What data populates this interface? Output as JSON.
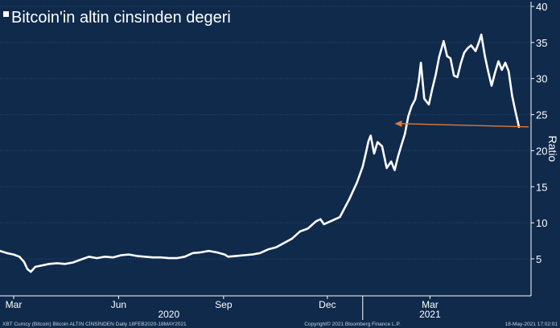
{
  "colors": {
    "background": "#102a4c",
    "line": "#ffffff",
    "grid": "#2d4a6e",
    "arrow": "#e07a3a",
    "text": "#ffffff",
    "footer_text": "#c9d3df"
  },
  "chart_data": {
    "type": "line",
    "title": "Bitcoin'in altin cinsinden degeri",
    "xlabel": "",
    "ylabel": "Ratio",
    "ylim": [
      0,
      40
    ],
    "yticks": [
      5,
      10,
      15,
      20,
      25,
      30,
      35,
      40
    ],
    "grid": "horizontal",
    "x_range": [
      "2020-02-18",
      "2021-05-18"
    ],
    "month_ticks": [
      {
        "label": "Mar",
        "date": "2020-03-01"
      },
      {
        "label": "Jun",
        "date": "2020-06-01"
      },
      {
        "label": "Sep",
        "date": "2020-09-01"
      },
      {
        "label": "Dec",
        "date": "2020-12-01"
      },
      {
        "label": "Mar",
        "date": "2021-03-01"
      }
    ],
    "year_labels": [
      {
        "label": "2020",
        "date": "2020-07-15"
      },
      {
        "label": "2021",
        "date": "2021-03-01"
      }
    ],
    "year_dividers": [
      "2021-01-01"
    ],
    "series": [
      {
        "values": [
          [
            "2020-02-18",
            6.1
          ],
          [
            "2020-02-24",
            5.8
          ],
          [
            "2020-03-01",
            5.6
          ],
          [
            "2020-03-06",
            5.3
          ],
          [
            "2020-03-10",
            4.6
          ],
          [
            "2020-03-13",
            3.6
          ],
          [
            "2020-03-16",
            3.2
          ],
          [
            "2020-03-20",
            3.9
          ],
          [
            "2020-03-26",
            4.1
          ],
          [
            "2020-04-01",
            4.3
          ],
          [
            "2020-04-08",
            4.4
          ],
          [
            "2020-04-15",
            4.3
          ],
          [
            "2020-04-22",
            4.5
          ],
          [
            "2020-04-29",
            4.9
          ],
          [
            "2020-05-06",
            5.3
          ],
          [
            "2020-05-13",
            5.1
          ],
          [
            "2020-05-20",
            5.3
          ],
          [
            "2020-05-27",
            5.2
          ],
          [
            "2020-06-03",
            5.5
          ],
          [
            "2020-06-10",
            5.6
          ],
          [
            "2020-06-17",
            5.4
          ],
          [
            "2020-06-24",
            5.3
          ],
          [
            "2020-07-01",
            5.2
          ],
          [
            "2020-07-08",
            5.2
          ],
          [
            "2020-07-15",
            5.1
          ],
          [
            "2020-07-22",
            5.1
          ],
          [
            "2020-07-29",
            5.3
          ],
          [
            "2020-08-05",
            5.8
          ],
          [
            "2020-08-12",
            5.9
          ],
          [
            "2020-08-19",
            6.1
          ],
          [
            "2020-08-26",
            5.9
          ],
          [
            "2020-09-02",
            5.6
          ],
          [
            "2020-09-05",
            5.3
          ],
          [
            "2020-09-12",
            5.4
          ],
          [
            "2020-09-19",
            5.5
          ],
          [
            "2020-09-26",
            5.6
          ],
          [
            "2020-10-03",
            5.8
          ],
          [
            "2020-10-10",
            6.3
          ],
          [
            "2020-10-17",
            6.6
          ],
          [
            "2020-10-24",
            7.2
          ],
          [
            "2020-10-31",
            7.8
          ],
          [
            "2020-11-07",
            8.8
          ],
          [
            "2020-11-14",
            9.2
          ],
          [
            "2020-11-21",
            10.2
          ],
          [
            "2020-11-25",
            10.5
          ],
          [
            "2020-11-28",
            9.8
          ],
          [
            "2020-12-05",
            10.3
          ],
          [
            "2020-12-12",
            10.8
          ],
          [
            "2020-12-17",
            12.3
          ],
          [
            "2020-12-20",
            13.2
          ],
          [
            "2020-12-27",
            15.6
          ],
          [
            "2021-01-01",
            17.8
          ],
          [
            "2021-01-04",
            19.8
          ],
          [
            "2021-01-06",
            21.3
          ],
          [
            "2021-01-08",
            22.1
          ],
          [
            "2021-01-11",
            19.6
          ],
          [
            "2021-01-14",
            21.2
          ],
          [
            "2021-01-18",
            20.6
          ],
          [
            "2021-01-22",
            17.6
          ],
          [
            "2021-01-26",
            18.5
          ],
          [
            "2021-01-29",
            17.3
          ],
          [
            "2021-02-01",
            19.2
          ],
          [
            "2021-02-04",
            20.8
          ],
          [
            "2021-02-07",
            22.3
          ],
          [
            "2021-02-10",
            24.8
          ],
          [
            "2021-02-13",
            26.2
          ],
          [
            "2021-02-16",
            27.1
          ],
          [
            "2021-02-19",
            29.5
          ],
          [
            "2021-02-21",
            32.2
          ],
          [
            "2021-02-24",
            27.2
          ],
          [
            "2021-02-28",
            26.4
          ],
          [
            "2021-03-03",
            28.6
          ],
          [
            "2021-03-06",
            30.5
          ],
          [
            "2021-03-09",
            33.0
          ],
          [
            "2021-03-13",
            35.2
          ],
          [
            "2021-03-16",
            33.1
          ],
          [
            "2021-03-19",
            32.8
          ],
          [
            "2021-03-22",
            30.4
          ],
          [
            "2021-03-25",
            30.2
          ],
          [
            "2021-03-28",
            32.1
          ],
          [
            "2021-03-31",
            33.6
          ],
          [
            "2021-04-03",
            34.2
          ],
          [
            "2021-04-06",
            34.6
          ],
          [
            "2021-04-10",
            33.8
          ],
          [
            "2021-04-13",
            35.1
          ],
          [
            "2021-04-15",
            36.1
          ],
          [
            "2021-04-18",
            33.2
          ],
          [
            "2021-04-21",
            31.0
          ],
          [
            "2021-04-24",
            29.0
          ],
          [
            "2021-04-27",
            30.8
          ],
          [
            "2021-04-30",
            32.4
          ],
          [
            "2021-05-03",
            31.2
          ],
          [
            "2021-05-06",
            32.2
          ],
          [
            "2021-05-09",
            31.0
          ],
          [
            "2021-05-12",
            27.6
          ],
          [
            "2021-05-15",
            25.4
          ],
          [
            "2021-05-18",
            23.3
          ]
        ]
      }
    ],
    "annotations": [
      {
        "type": "arrow",
        "from": [
          "2021-05-18",
          23.3
        ],
        "to": [
          "2021-01-29",
          23.3
        ]
      }
    ],
    "footer": {
      "left": "XBT Curncy (Bitcoin) Bitcoin ALTIN CİNSİNDEN  Daily 18FEB2020-18MAY2021",
      "center": "Copyright© 2021 Bloomberg Finance L.P.",
      "right": "18-May-2021 17:02:01"
    }
  }
}
